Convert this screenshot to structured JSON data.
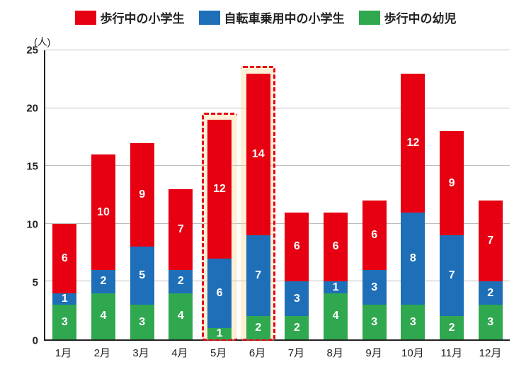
{
  "chart": {
    "type": "stacked-bar",
    "unit_label": "(人)",
    "legend": [
      {
        "label": "歩行中の小学生",
        "color": "#e60012"
      },
      {
        "label": "自転車乗用中の小学生",
        "color": "#1e6fb8"
      },
      {
        "label": "歩行中の幼児",
        "color": "#2fa84f"
      }
    ],
    "yaxis": {
      "min": 0,
      "max": 25,
      "step": 5
    },
    "categories": [
      "1月",
      "2月",
      "3月",
      "4月",
      "5月",
      "6月",
      "7月",
      "8月",
      "9月",
      "10月",
      "11月",
      "12月"
    ],
    "series": {
      "green": {
        "color": "#2fa84f",
        "values": [
          3,
          4,
          3,
          4,
          1,
          2,
          2,
          4,
          3,
          3,
          2,
          3
        ]
      },
      "blue": {
        "color": "#1e6fb8",
        "values": [
          1,
          2,
          5,
          2,
          6,
          7,
          3,
          1,
          3,
          8,
          7,
          2
        ]
      },
      "red": {
        "color": "#e60012",
        "values": [
          6,
          10,
          9,
          7,
          12,
          14,
          6,
          6,
          6,
          12,
          9,
          7
        ]
      }
    },
    "highlight": {
      "start_index": 4,
      "end_index": 5,
      "border_color": "#e60012",
      "fill_color": "rgba(251,209,140,0.35)"
    },
    "grid_color": "#bdbdbd",
    "axis_color": "#222222",
    "bar_width_ratio": 0.62,
    "label_fontsize": 16,
    "axis_fontsize": 15
  }
}
